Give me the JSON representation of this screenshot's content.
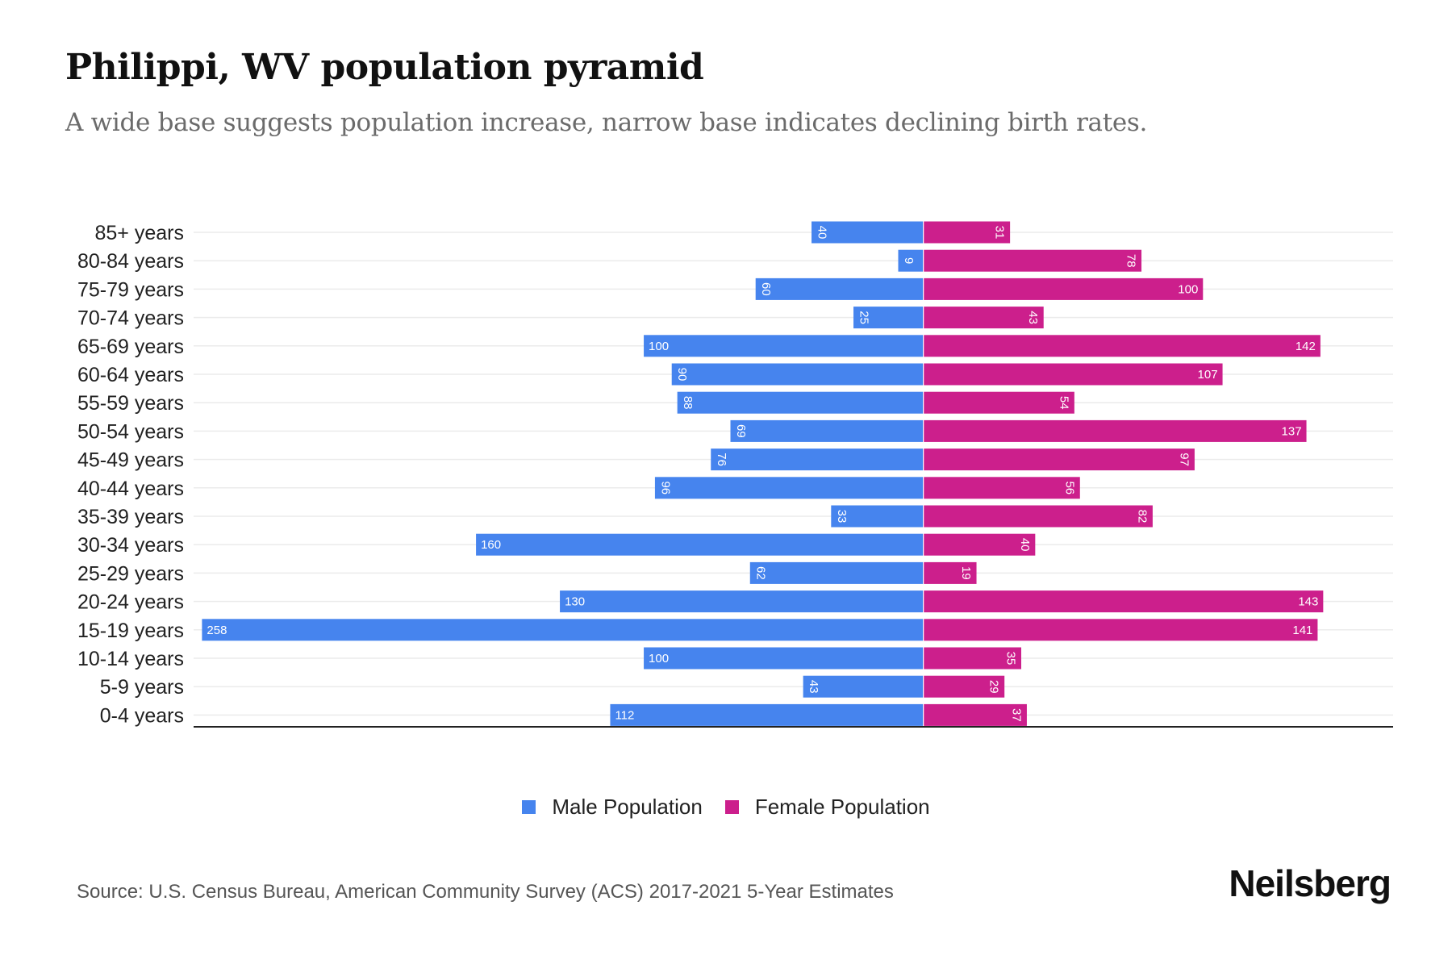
{
  "header": {
    "title": "Philippi, WV population pyramid",
    "subtitle": "A wide base suggests population increase, narrow base indicates declining birth rates."
  },
  "footer": {
    "source": "Source: U.S. Census Bureau, American Community Survey (ACS) 2017-2021 5-Year Estimates",
    "logo": "Neilsberg"
  },
  "chart_data": {
    "type": "bar",
    "orientation": "horizontal",
    "subtype": "population-pyramid",
    "title": "Philippi, WV population pyramid",
    "subtitle": "A wide base suggests population increase, narrow base indicates declining birth rates.",
    "xlabel": "",
    "ylabel": "",
    "categories": [
      "85+ years",
      "80-84 years",
      "75-79 years",
      "70-74 years",
      "65-69 years",
      "60-64 years",
      "55-59 years",
      "50-54 years",
      "45-49 years",
      "40-44 years",
      "35-39 years",
      "30-34 years",
      "25-29 years",
      "20-24 years",
      "15-19 years",
      "10-14 years",
      "5-9 years",
      "0-4 years"
    ],
    "series": [
      {
        "name": "Male Population",
        "color": "#4684EE",
        "side": "left",
        "values": [
          40,
          9,
          60,
          25,
          100,
          90,
          88,
          69,
          76,
          96,
          33,
          160,
          62,
          130,
          258,
          100,
          43,
          112
        ]
      },
      {
        "name": "Female Population",
        "color": "#CC1F8C",
        "side": "right",
        "values": [
          31,
          78,
          100,
          43,
          142,
          107,
          54,
          137,
          97,
          56,
          82,
          40,
          19,
          143,
          141,
          35,
          29,
          37
        ]
      }
    ],
    "xlim": [
      -261,
      168
    ],
    "grid": true,
    "data_labels": true,
    "legend": {
      "position": "bottom-center",
      "entries": [
        "Male Population",
        "Female Population"
      ]
    }
  }
}
